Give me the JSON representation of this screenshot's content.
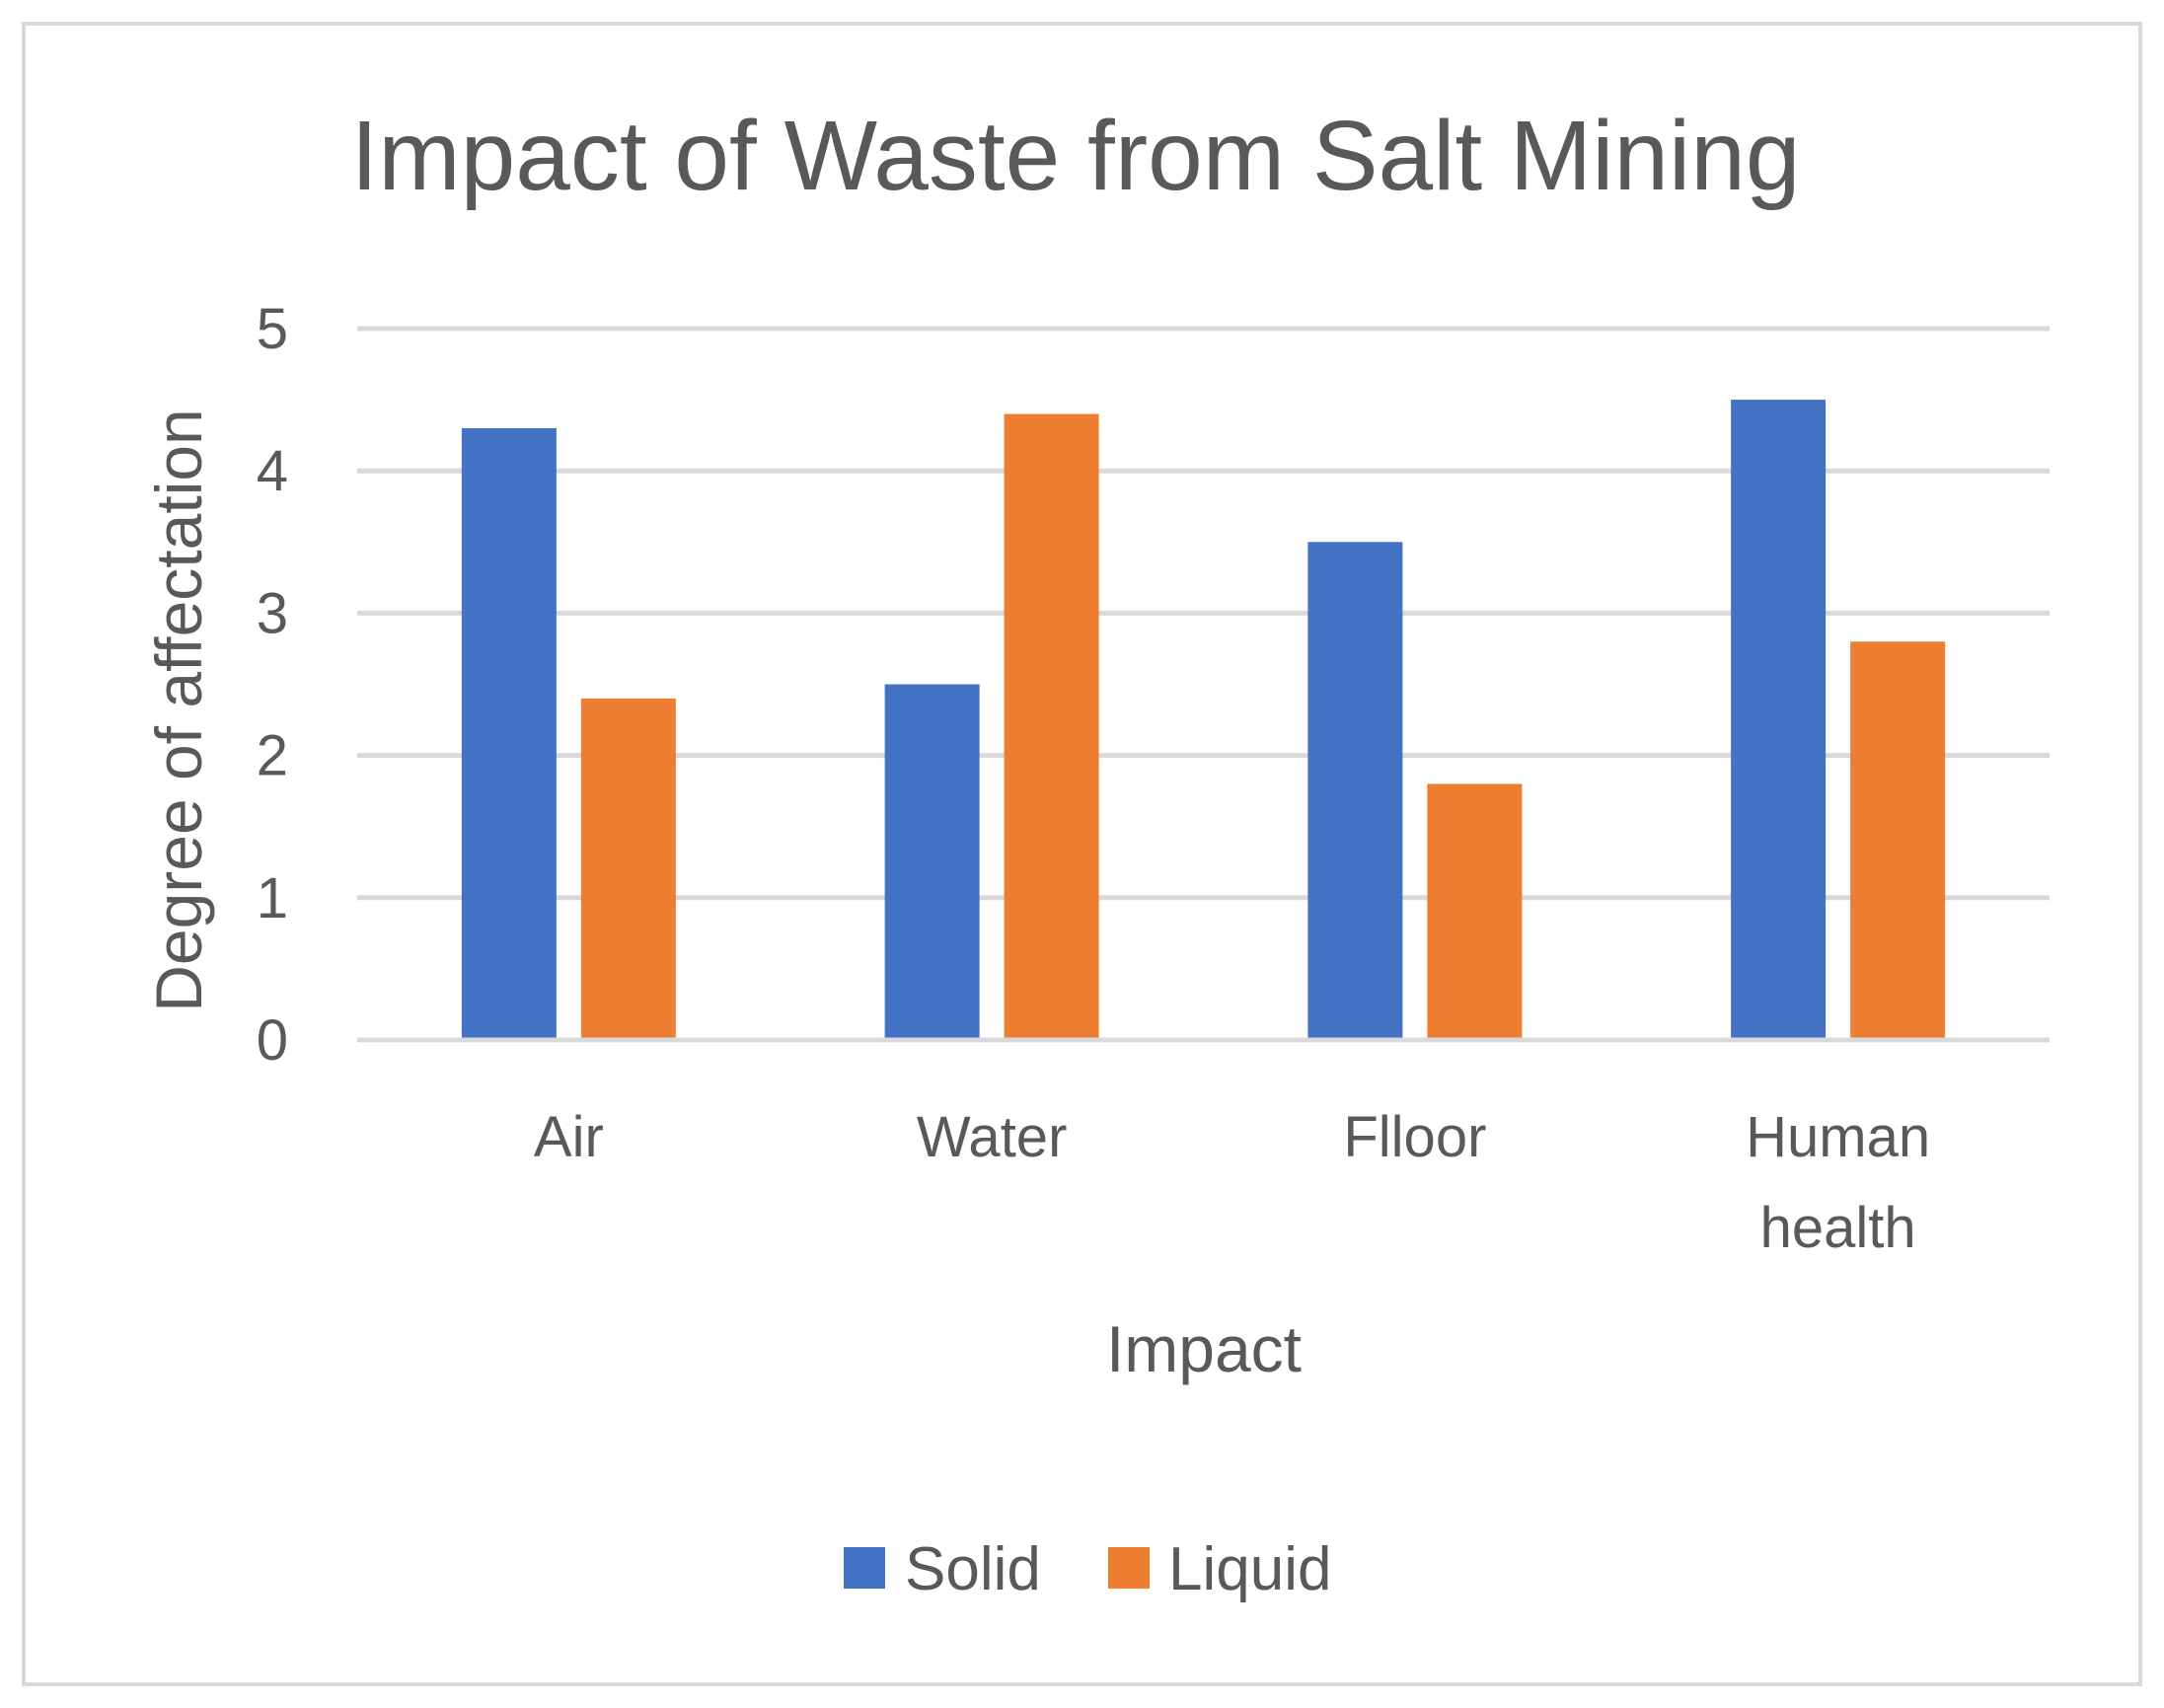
{
  "chart_data": {
    "type": "bar",
    "title": "Impact of Waste from Salt Mining",
    "categories": [
      [
        "Air"
      ],
      [
        "Water"
      ],
      [
        "Flloor"
      ],
      [
        "Human",
        "health"
      ]
    ],
    "category_names": [
      "Air",
      "Water",
      "Flloor",
      "Human health"
    ],
    "series": [
      {
        "name": "Solid",
        "color": "#4472c4",
        "values": [
          4.3,
          2.5,
          3.5,
          4.5
        ]
      },
      {
        "name": "Liquid",
        "color": "#ed7d31",
        "values": [
          2.4,
          4.4,
          1.8,
          2.8
        ]
      }
    ],
    "xlabel": "Impact",
    "ylabel": "Degree of affectation",
    "ylim": [
      0,
      5
    ],
    "yticks": [
      "0",
      "1",
      "2",
      "3",
      "4",
      "5"
    ],
    "grid": true,
    "gridline_color": "#d9d9d9",
    "legend_position": "bottom"
  }
}
